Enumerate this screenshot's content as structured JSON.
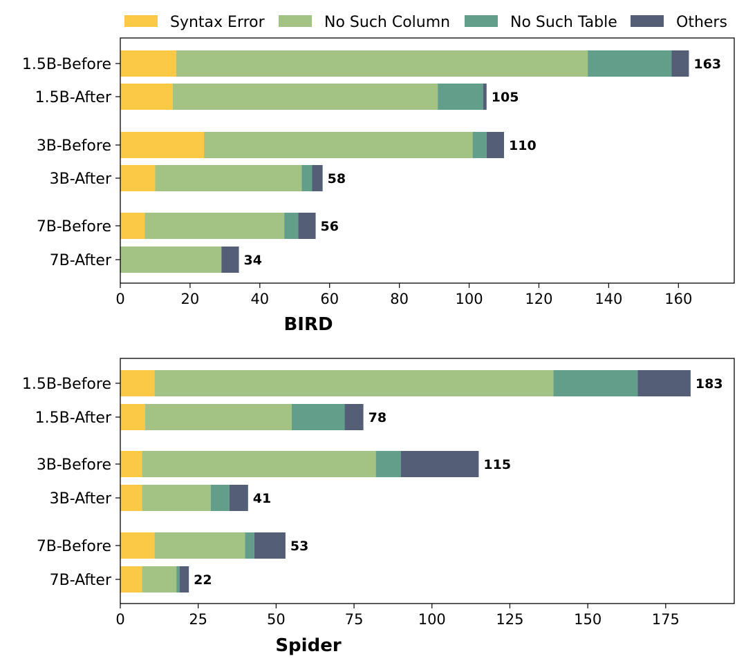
{
  "legend": [
    {
      "label": "Syntax Error",
      "color": "#FCC946"
    },
    {
      "label": "No Such Column",
      "color": "#A2C383"
    },
    {
      "label": "No Such Table",
      "color": "#629E8A"
    },
    {
      "label": "Others",
      "color": "#545E77"
    }
  ],
  "chart_data": [
    {
      "type": "bar",
      "orientation": "horizontal",
      "stacked": true,
      "title": "",
      "xlabel": "BIRD",
      "ylabel": "",
      "xlim": [
        0,
        176
      ],
      "xticks": [
        0,
        20,
        40,
        60,
        80,
        100,
        120,
        140,
        160
      ],
      "categories": [
        "1.5B-Before",
        "1.5B-After",
        "3B-Before",
        "3B-After",
        "7B-Before",
        "7B-After"
      ],
      "series": [
        {
          "name": "Syntax Error",
          "values": [
            16,
            15,
            24,
            10,
            7,
            0
          ]
        },
        {
          "name": "No Such Column",
          "values": [
            118,
            76,
            77,
            42,
            40,
            29
          ]
        },
        {
          "name": "No Such Table",
          "values": [
            24,
            13,
            4,
            3,
            4,
            0
          ]
        },
        {
          "name": "Others",
          "values": [
            5,
            1,
            5,
            3,
            5,
            5
          ]
        }
      ],
      "totals": [
        "163",
        "105",
        "110",
        "58",
        "56",
        "34"
      ]
    },
    {
      "type": "bar",
      "orientation": "horizontal",
      "stacked": true,
      "title": "",
      "xlabel": "Spider",
      "ylabel": "",
      "xlim": [
        0,
        197
      ],
      "xticks": [
        0,
        25,
        50,
        75,
        100,
        125,
        150,
        175
      ],
      "categories": [
        "1.5B-Before",
        "1.5B-After",
        "3B-Before",
        "3B-After",
        "7B-Before",
        "7B-After"
      ],
      "series": [
        {
          "name": "Syntax Error",
          "values": [
            11,
            8,
            7,
            7,
            11,
            7
          ]
        },
        {
          "name": "No Such Column",
          "values": [
            128,
            47,
            75,
            22,
            29,
            11
          ]
        },
        {
          "name": "No Such Table",
          "values": [
            27,
            17,
            8,
            6,
            3,
            1
          ]
        },
        {
          "name": "Others",
          "values": [
            17,
            6,
            25,
            6,
            10,
            3
          ]
        }
      ],
      "totals": [
        "183",
        "78",
        "115",
        "41",
        "53",
        "22"
      ]
    }
  ]
}
